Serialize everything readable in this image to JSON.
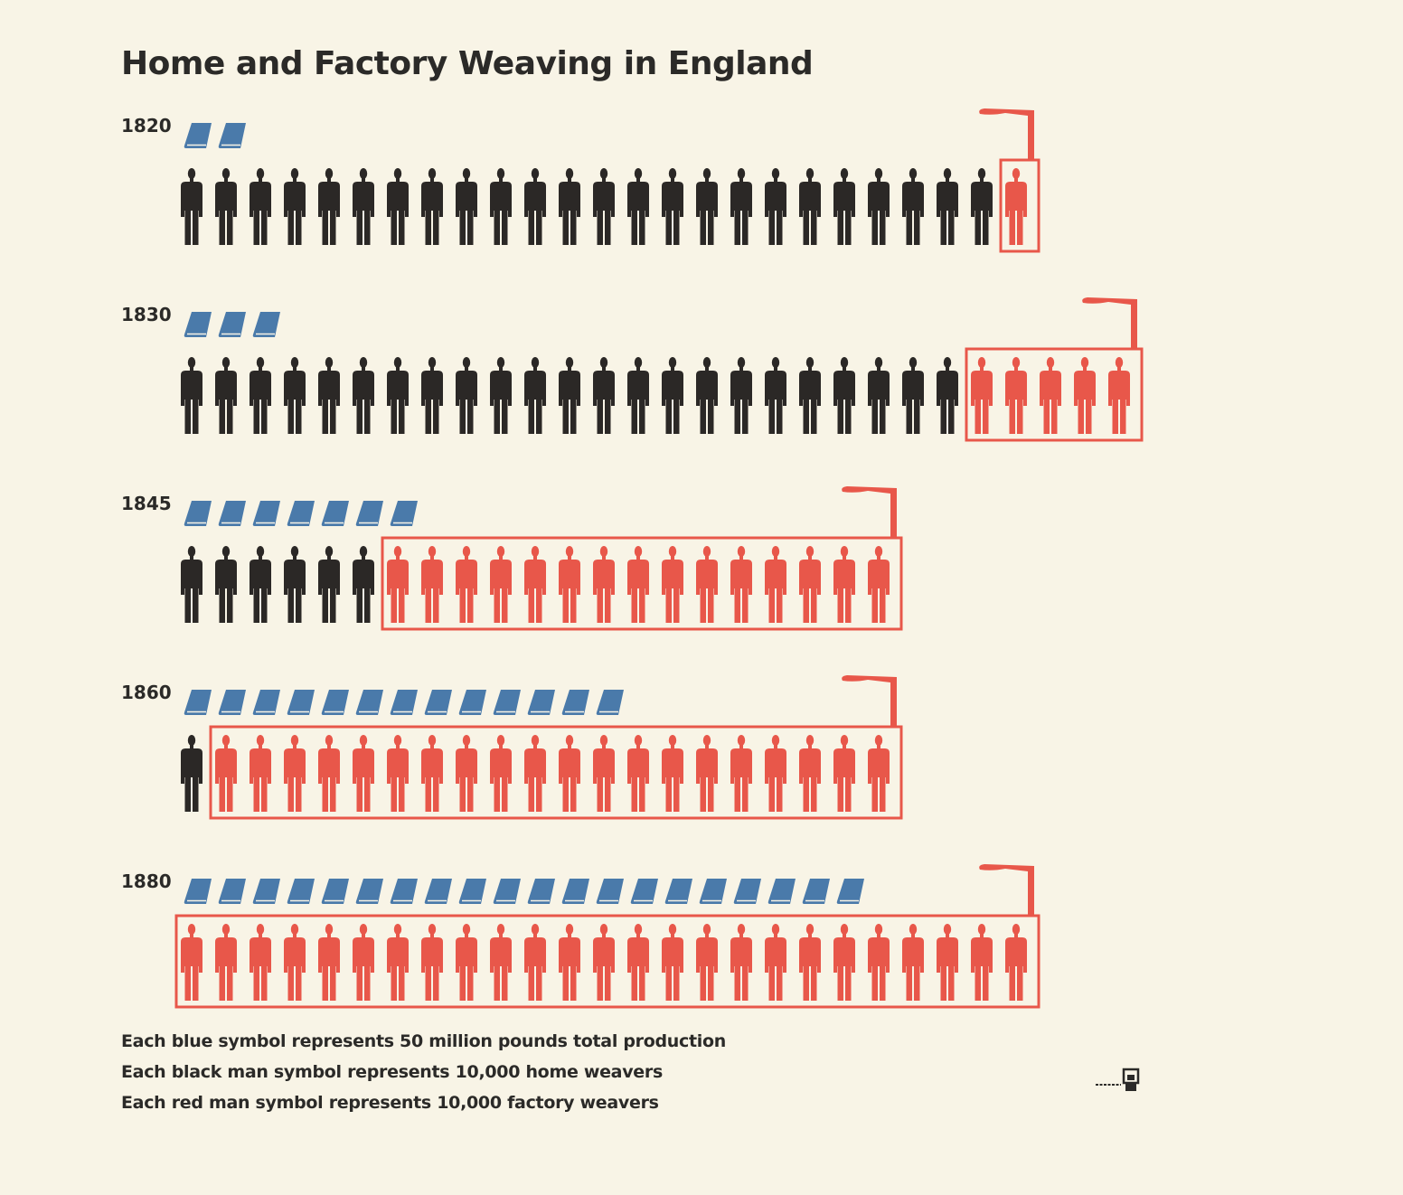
{
  "chart_data": {
    "type": "pictogram",
    "title": "Home and Factory Weaving in England",
    "categories": [
      "1820",
      "1830",
      "1845",
      "1860",
      "1880"
    ],
    "series": [
      {
        "symbol": "blue bolt of cloth",
        "color": "#4a7aaa",
        "values": [
          2,
          3,
          7,
          13,
          20
        ]
      },
      {
        "symbol": "black man",
        "color": "#2b2826",
        "values": [
          24,
          23,
          6,
          1,
          0
        ]
      },
      {
        "symbol": "red man inside factory",
        "color": "#e8574a",
        "values": [
          1,
          5,
          15,
          20,
          25
        ]
      }
    ],
    "legend": [
      "Each blue symbol represents 50 million pounds total production",
      "Each black man symbol represents 10,000 home weavers",
      "Each red man symbol represents 10,000 factory weavers"
    ]
  },
  "colors": {
    "background": "#f8f4e6",
    "cloth": "#4a7aaa",
    "home_weaver": "#2b2826",
    "factory_weaver": "#e8574a",
    "factory_outline": "#e8574a"
  }
}
